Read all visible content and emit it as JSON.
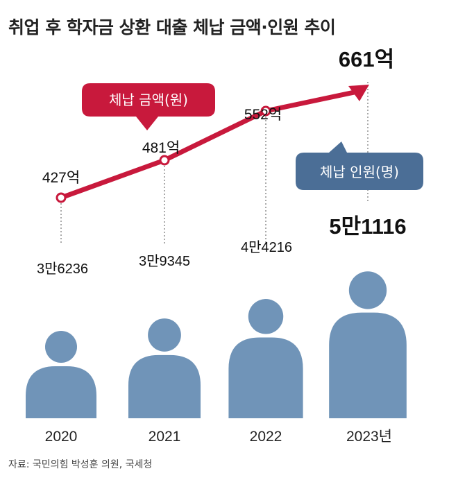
{
  "title": "취업 후 학자금 상환 대출 체납 금액·인원 추이",
  "source": "자료: 국민의힘 박성훈 의원, 국세청",
  "colors": {
    "amount_line": "#c8193c",
    "person": "#7094b8",
    "count_legend": "#4b6e96",
    "guide": "#555555",
    "text": "#111111"
  },
  "chart_data": {
    "type": "line",
    "categories": [
      "2020",
      "2021",
      "2022",
      "2023년"
    ],
    "series": [
      {
        "name": "체납 금액(원)",
        "unit": "억",
        "values": [
          427,
          481,
          552,
          661
        ],
        "labels": [
          "427억",
          "481억",
          "552억",
          "661억"
        ]
      },
      {
        "name": "체납 인원(명)",
        "values": [
          36236,
          39345,
          44216,
          51116
        ],
        "labels": [
          "3만6236",
          "3만9345",
          "4만4216",
          "5만1116"
        ]
      }
    ]
  }
}
